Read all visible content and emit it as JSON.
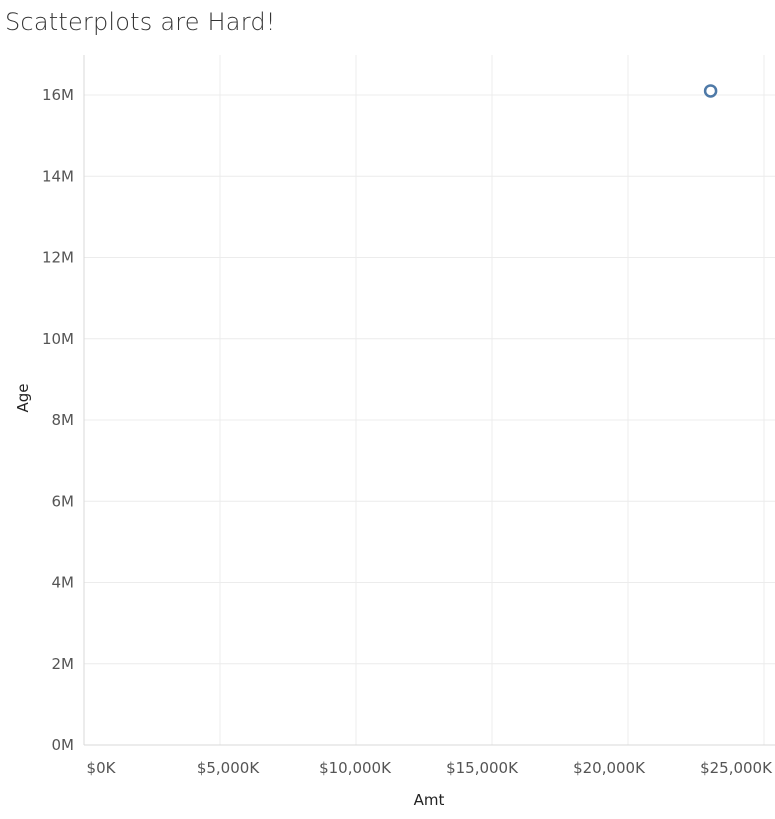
{
  "chart_data": {
    "type": "scatter",
    "title": "Scatterplots are Hard!",
    "xlabel": "Amt",
    "ylabel": "Age",
    "xlim": [
      0,
      25500
    ],
    "ylim": [
      0,
      16.9
    ],
    "x_ticks": [
      0,
      5000,
      10000,
      15000,
      20000,
      25000
    ],
    "x_tick_labels": [
      "$0K",
      "$5,000K",
      "$10,000K",
      "$15,000K",
      "$20,000K",
      "$25,000K"
    ],
    "y_ticks": [
      0,
      2,
      4,
      6,
      8,
      10,
      12,
      14,
      16
    ],
    "y_tick_labels": [
      "0M",
      "2M",
      "4M",
      "6M",
      "8M",
      "10M",
      "12M",
      "14M",
      "16M"
    ],
    "grid": true,
    "marker": "hollow-circle",
    "series": [
      {
        "color": "#4e79a7",
        "points": [
          {
            "x": 24000,
            "y": 16.1
          }
        ]
      }
    ]
  }
}
